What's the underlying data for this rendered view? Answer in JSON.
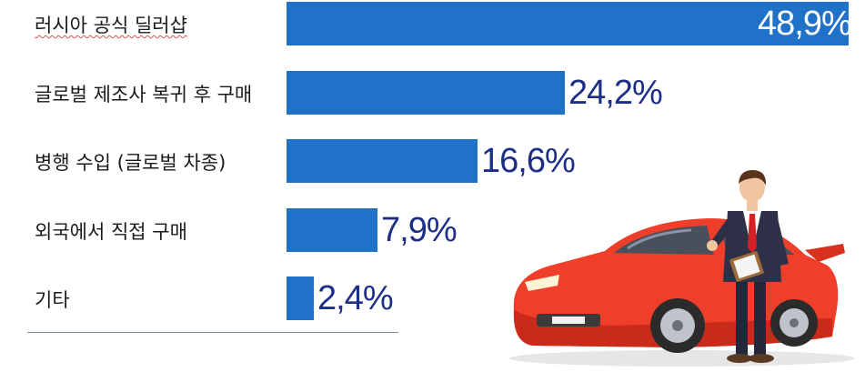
{
  "chart_data": {
    "type": "bar",
    "orientation": "horizontal",
    "categories": [
      "러시아 공식 딜러샵",
      "글로벌 제조사 복귀 후 구매",
      "병행 수입 (글로벌 차종)",
      "외국에서 직접 구매",
      "기타"
    ],
    "values": [
      48.9,
      24.2,
      16.6,
      7.9,
      2.4
    ],
    "value_labels": [
      "48,9%",
      "24,2%",
      "16,6%",
      "7,9%",
      "2,4%"
    ],
    "title": "",
    "xlabel": "",
    "ylabel": "",
    "xlim": [
      0,
      48.9
    ],
    "grid": false,
    "legend": "none",
    "colors": {
      "bar": "#1f72c8",
      "value_text": "#1b2f86",
      "value_text_inside": "#ffffff"
    }
  },
  "illustration": {
    "icon": "car-salesman-icon"
  }
}
